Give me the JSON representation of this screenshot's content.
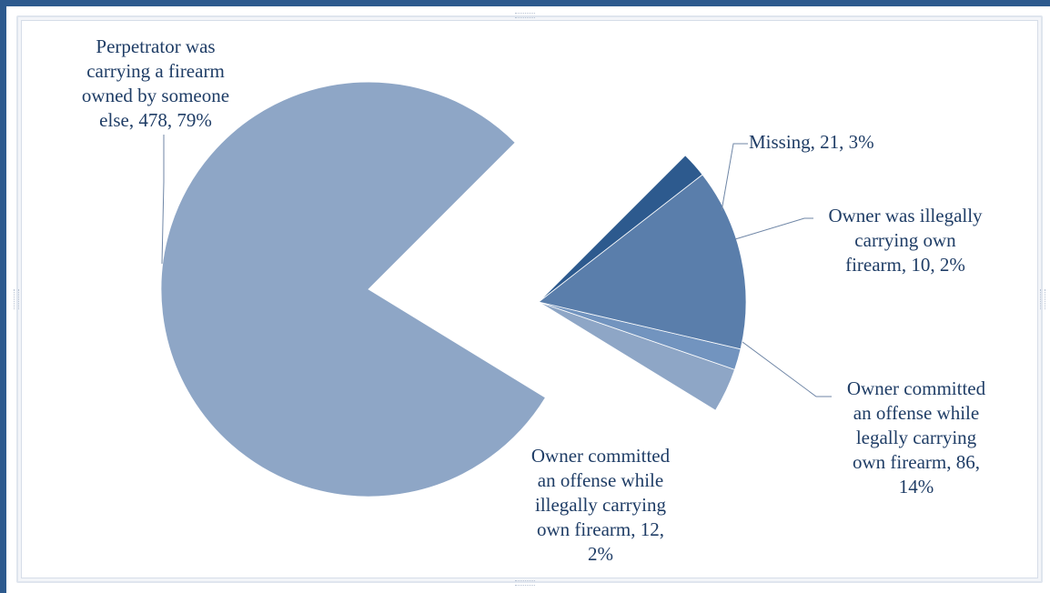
{
  "chart_data": {
    "type": "pie",
    "exploded": true,
    "slices": [
      {
        "label": "Perpetrator was carrying a firearm owned by someone else",
        "value": 478,
        "percent": "79%",
        "color": "#8ea6c6"
      },
      {
        "label": "Missing",
        "value": 21,
        "percent": "3%",
        "color": "#8ea6c6"
      },
      {
        "label": "Owner was illegally carrying own firearm",
        "value": 10,
        "percent": "2%",
        "color": "#7294bf"
      },
      {
        "label": "Owner committed an offense while legally carrying own firearm",
        "value": 86,
        "percent": "14%",
        "color": "#5a7eab"
      },
      {
        "label": "Owner committed an offense while illegally carrying own firearm",
        "value": 12,
        "percent": "2%",
        "color": "#2d5a8e"
      }
    ],
    "data_labels": [
      "Perpetrator was\ncarrying a firearm\nowned by someone\nelse, 478, 79%",
      "Missing, 21, 3%",
      "Owner was illegally\ncarrying own\nfirearm, 10, 2%",
      "Owner committed\nan offense while\nlegally carrying\nown firearm, 86,\n14%",
      "Owner committed\nan offense while\nillegally carrying\nown firearm, 12,\n2%"
    ]
  }
}
